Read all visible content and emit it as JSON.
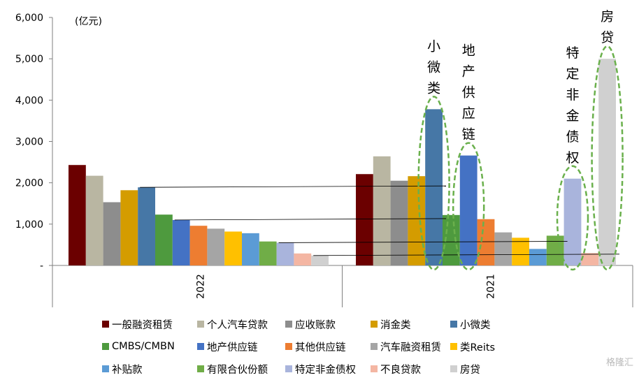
{
  "chart_data": {
    "type": "bar",
    "unit_label": "(亿元)",
    "categories": [
      "2022",
      "2021"
    ],
    "ylim": [
      0,
      6000
    ],
    "yticks": [
      {
        "value": 0,
        "label": "-"
      },
      {
        "value": 1000,
        "label": "1,000"
      },
      {
        "value": 2000,
        "label": "2,000"
      },
      {
        "value": 3000,
        "label": "3,000"
      },
      {
        "value": 4000,
        "label": "4,000"
      },
      {
        "value": 5000,
        "label": "5,000"
      },
      {
        "value": 6000,
        "label": "6,000"
      }
    ],
    "series": [
      {
        "name": "一般融资租赁",
        "color": "#6b0000",
        "values": [
          2430,
          2210
        ]
      },
      {
        "name": "个人汽车贷款",
        "color": "#b9b6a2",
        "values": [
          2170,
          2640
        ]
      },
      {
        "name": "应收账款",
        "color": "#8d8d8d",
        "values": [
          1530,
          2050
        ]
      },
      {
        "name": "消金类",
        "color": "#d49c00",
        "values": [
          1820,
          2160
        ]
      },
      {
        "name": "小微类",
        "color": "#4677a6",
        "values": [
          1890,
          3780
        ]
      },
      {
        "name": "CMBS/CMBN",
        "color": "#4e9a3e",
        "values": [
          1230,
          1220
        ]
      },
      {
        "name": "地产供应链",
        "color": "#4472c4",
        "values": [
          1100,
          2660
        ]
      },
      {
        "name": "其他供应链",
        "color": "#ed7d31",
        "values": [
          960,
          1120
        ]
      },
      {
        "name": "汽车融资租赁",
        "color": "#a5a5a5",
        "values": [
          890,
          800
        ]
      },
      {
        "name": "类Reits",
        "color": "#ffc000",
        "values": [
          820,
          670
        ]
      },
      {
        "name": "补贴款",
        "color": "#5b9bd5",
        "values": [
          780,
          400
        ]
      },
      {
        "name": "有限合伙份额",
        "color": "#70ad47",
        "values": [
          580,
          720
        ]
      },
      {
        "name": "特定非金债权",
        "color": "#a9b4dc",
        "values": [
          550,
          2100
        ]
      },
      {
        "name": "不良贷款",
        "color": "#f4b6a3",
        "values": [
          290,
          300
        ]
      },
      {
        "name": "房贷",
        "color": "#d0d0d0",
        "values": [
          240,
          5000
        ]
      }
    ],
    "annotations": [
      {
        "series": "小微类",
        "text": "小微类"
      },
      {
        "series": "地产供应链",
        "text": "地产供应链"
      },
      {
        "series": "特定非金债权",
        "text": "特定非金债权"
      },
      {
        "series": "房贷",
        "text": "房贷"
      }
    ],
    "comparison_lines": [
      {
        "from": "小微类",
        "to": "小微类"
      },
      {
        "from": "地产供应链",
        "to": "小微类"
      },
      {
        "from": "特定非金债权",
        "to": "有限合伙份额"
      },
      {
        "from": "房贷",
        "to": "房贷"
      }
    ],
    "annotation_style": {
      "ellipse_stroke": "#6ab04c",
      "line_stroke": "#000000"
    },
    "legend_position": "bottom",
    "grid": false
  },
  "watermark": "格隆汇"
}
